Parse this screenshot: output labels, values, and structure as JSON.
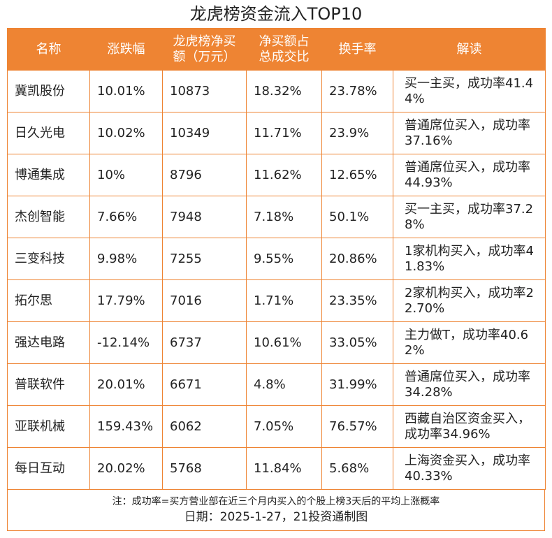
{
  "title": "龙虎榜资金流入TOP10",
  "table": {
    "header": [
      "名称",
      "涨跌幅",
      "龙虎榜净买额（万元）",
      "净买额占总成交比",
      "换手率",
      "解读"
    ],
    "rows": [
      [
        "冀凯股份",
        "10.01%",
        "10873",
        "18.32%",
        "23.78%",
        "买一主买，成功率41.44%"
      ],
      [
        "日久光电",
        "10.02%",
        "10349",
        "11.71%",
        "23.9%",
        "普通席位买入，成功率37.16%"
      ],
      [
        "博通集成",
        "10%",
        "8796",
        "11.62%",
        "12.65%",
        "普通席位买入，成功率44.93%"
      ],
      [
        "杰创智能",
        "7.66%",
        "7948",
        "7.18%",
        "50.1%",
        "买一主买，成功率37.28%"
      ],
      [
        "三变科技",
        "9.98%",
        "7255",
        "9.55%",
        "20.86%",
        "1家机构买入，成功率41.83%"
      ],
      [
        "拓尔思",
        "17.79%",
        "7016",
        "1.71%",
        "23.35%",
        "2家机构买入，成功率22.70%"
      ],
      [
        "强达电路",
        "-12.14%",
        "6737",
        "10.61%",
        "33.05%",
        "主力做T，成功率40.62%"
      ],
      [
        "普联软件",
        "20.01%",
        "6671",
        "4.8%",
        "31.99%",
        "普通席位买入，成功率34.28%"
      ],
      [
        "亚联机械",
        "159.43%",
        "6062",
        "7.05%",
        "76.57%",
        "西藏自治区资金买入，成功率34.96%"
      ],
      [
        "每日互动",
        "20.02%",
        "5768",
        "11.84%",
        "5.68%",
        "上海资金买入，成功率40.33%"
      ]
    ]
  },
  "footer": {
    "note": "注：成功率=买方营业部在近三个月内买入的个股上榜3天后的平均上涨概率",
    "date": "日期：2025-1-27，21投资通制图"
  }
}
